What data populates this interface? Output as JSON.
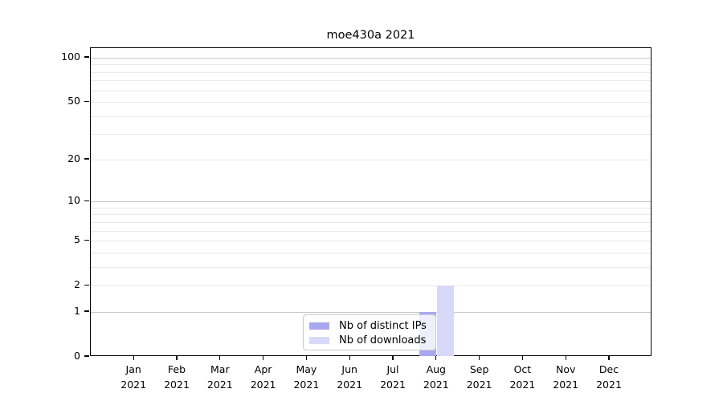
{
  "chart_data": {
    "type": "bar",
    "title": "moe430a 2021",
    "xlabel": "",
    "ylabel": "",
    "scale": "log1p",
    "categories": [
      "Jan 2021",
      "Feb 2021",
      "Mar 2021",
      "Apr 2021",
      "May 2021",
      "Jun 2021",
      "Jul 2021",
      "Aug 2021",
      "Sep 2021",
      "Oct 2021",
      "Nov 2021",
      "Dec 2021"
    ],
    "series": [
      {
        "name": "Nb of distinct IPs",
        "color": "#a8a8f0",
        "values": [
          0,
          0,
          0,
          0,
          0,
          0,
          0,
          1,
          0,
          0,
          0,
          0
        ]
      },
      {
        "name": "Nb of downloads",
        "color": "#d8d8f8",
        "values": [
          0,
          0,
          0,
          0,
          0,
          0,
          0,
          2,
          0,
          0,
          0,
          0
        ]
      }
    ],
    "yticks": [
      0,
      1,
      2,
      5,
      10,
      20,
      50,
      100
    ],
    "major_gridlines": [
      1,
      10,
      100
    ],
    "minor_gridlines": [
      2,
      3,
      4,
      5,
      6,
      7,
      8,
      9,
      20,
      30,
      40,
      50,
      60,
      70,
      80,
      90
    ],
    "ylim": [
      0,
      116
    ],
    "grid": "horizontal",
    "legend_position": "lower center",
    "colors": {
      "major_grid": "#c8c8c8",
      "minor_grid": "#e9e9e9",
      "axis": "#000000",
      "background": "#ffffff"
    }
  }
}
